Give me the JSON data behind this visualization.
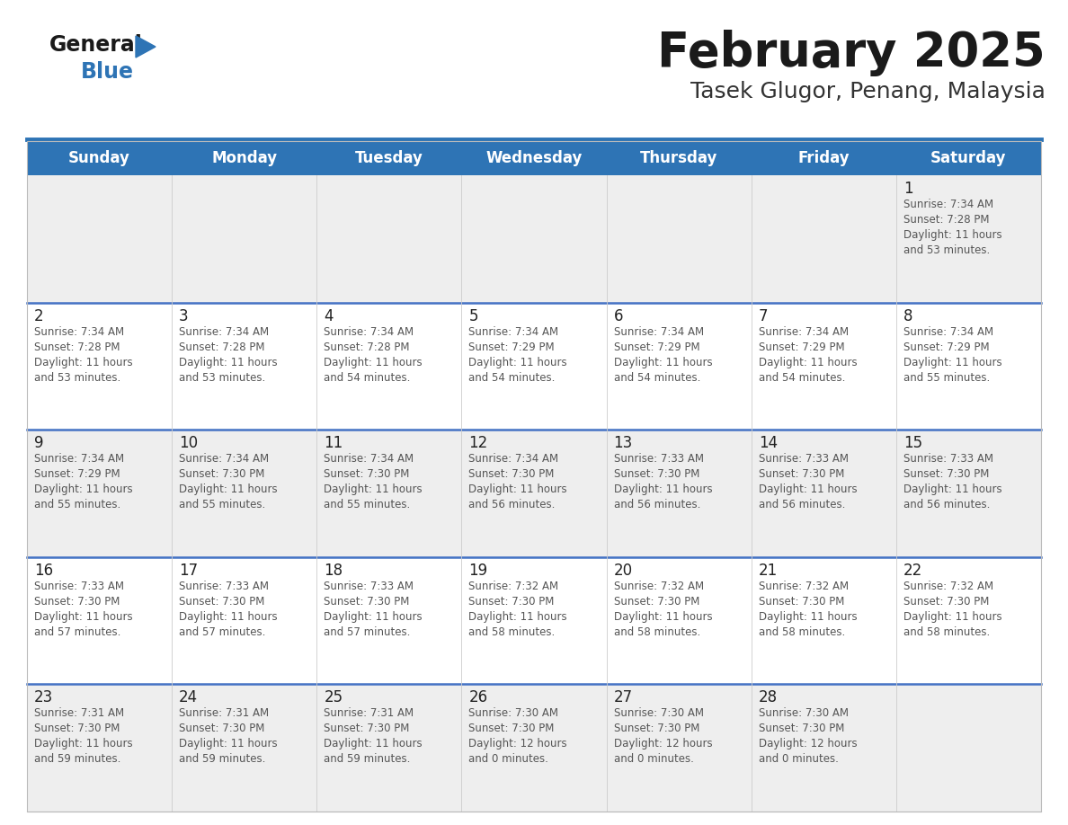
{
  "title": "February 2025",
  "subtitle": "Tasek Glugor, Penang, Malaysia",
  "days_of_week": [
    "Sunday",
    "Monday",
    "Tuesday",
    "Wednesday",
    "Thursday",
    "Friday",
    "Saturday"
  ],
  "header_bg": "#2E74B5",
  "header_text": "#FFFFFF",
  "cell_bg_light": "#FFFFFF",
  "cell_bg_gray": "#EEEEEE",
  "separator_color": "#2E74B5",
  "row_sep_color": "#4472C4",
  "day_number_color": "#222222",
  "info_text_color": "#555555",
  "title_color": "#1A1A1A",
  "subtitle_color": "#333333",
  "logo_general_color": "#1A1A1A",
  "logo_blue_color": "#2E74B5",
  "calendar_data": [
    [
      null,
      null,
      null,
      null,
      null,
      null,
      {
        "day": 1,
        "sunrise": "7:34 AM",
        "sunset": "7:28 PM",
        "daylight": "11 hours and 53 minutes."
      }
    ],
    [
      {
        "day": 2,
        "sunrise": "7:34 AM",
        "sunset": "7:28 PM",
        "daylight": "11 hours and 53 minutes."
      },
      {
        "day": 3,
        "sunrise": "7:34 AM",
        "sunset": "7:28 PM",
        "daylight": "11 hours and 53 minutes."
      },
      {
        "day": 4,
        "sunrise": "7:34 AM",
        "sunset": "7:28 PM",
        "daylight": "11 hours and 54 minutes."
      },
      {
        "day": 5,
        "sunrise": "7:34 AM",
        "sunset": "7:29 PM",
        "daylight": "11 hours and 54 minutes."
      },
      {
        "day": 6,
        "sunrise": "7:34 AM",
        "sunset": "7:29 PM",
        "daylight": "11 hours and 54 minutes."
      },
      {
        "day": 7,
        "sunrise": "7:34 AM",
        "sunset": "7:29 PM",
        "daylight": "11 hours and 54 minutes."
      },
      {
        "day": 8,
        "sunrise": "7:34 AM",
        "sunset": "7:29 PM",
        "daylight": "11 hours and 55 minutes."
      }
    ],
    [
      {
        "day": 9,
        "sunrise": "7:34 AM",
        "sunset": "7:29 PM",
        "daylight": "11 hours and 55 minutes."
      },
      {
        "day": 10,
        "sunrise": "7:34 AM",
        "sunset": "7:30 PM",
        "daylight": "11 hours and 55 minutes."
      },
      {
        "day": 11,
        "sunrise": "7:34 AM",
        "sunset": "7:30 PM",
        "daylight": "11 hours and 55 minutes."
      },
      {
        "day": 12,
        "sunrise": "7:34 AM",
        "sunset": "7:30 PM",
        "daylight": "11 hours and 56 minutes."
      },
      {
        "day": 13,
        "sunrise": "7:33 AM",
        "sunset": "7:30 PM",
        "daylight": "11 hours and 56 minutes."
      },
      {
        "day": 14,
        "sunrise": "7:33 AM",
        "sunset": "7:30 PM",
        "daylight": "11 hours and 56 minutes."
      },
      {
        "day": 15,
        "sunrise": "7:33 AM",
        "sunset": "7:30 PM",
        "daylight": "11 hours and 56 minutes."
      }
    ],
    [
      {
        "day": 16,
        "sunrise": "7:33 AM",
        "sunset": "7:30 PM",
        "daylight": "11 hours and 57 minutes."
      },
      {
        "day": 17,
        "sunrise": "7:33 AM",
        "sunset": "7:30 PM",
        "daylight": "11 hours and 57 minutes."
      },
      {
        "day": 18,
        "sunrise": "7:33 AM",
        "sunset": "7:30 PM",
        "daylight": "11 hours and 57 minutes."
      },
      {
        "day": 19,
        "sunrise": "7:32 AM",
        "sunset": "7:30 PM",
        "daylight": "11 hours and 58 minutes."
      },
      {
        "day": 20,
        "sunrise": "7:32 AM",
        "sunset": "7:30 PM",
        "daylight": "11 hours and 58 minutes."
      },
      {
        "day": 21,
        "sunrise": "7:32 AM",
        "sunset": "7:30 PM",
        "daylight": "11 hours and 58 minutes."
      },
      {
        "day": 22,
        "sunrise": "7:32 AM",
        "sunset": "7:30 PM",
        "daylight": "11 hours and 58 minutes."
      }
    ],
    [
      {
        "day": 23,
        "sunrise": "7:31 AM",
        "sunset": "7:30 PM",
        "daylight": "11 hours and 59 minutes."
      },
      {
        "day": 24,
        "sunrise": "7:31 AM",
        "sunset": "7:30 PM",
        "daylight": "11 hours and 59 minutes."
      },
      {
        "day": 25,
        "sunrise": "7:31 AM",
        "sunset": "7:30 PM",
        "daylight": "11 hours and 59 minutes."
      },
      {
        "day": 26,
        "sunrise": "7:30 AM",
        "sunset": "7:30 PM",
        "daylight": "12 hours and 0 minutes."
      },
      {
        "day": 27,
        "sunrise": "7:30 AM",
        "sunset": "7:30 PM",
        "daylight": "12 hours and 0 minutes."
      },
      {
        "day": 28,
        "sunrise": "7:30 AM",
        "sunset": "7:30 PM",
        "daylight": "12 hours and 0 minutes."
      },
      null
    ]
  ]
}
